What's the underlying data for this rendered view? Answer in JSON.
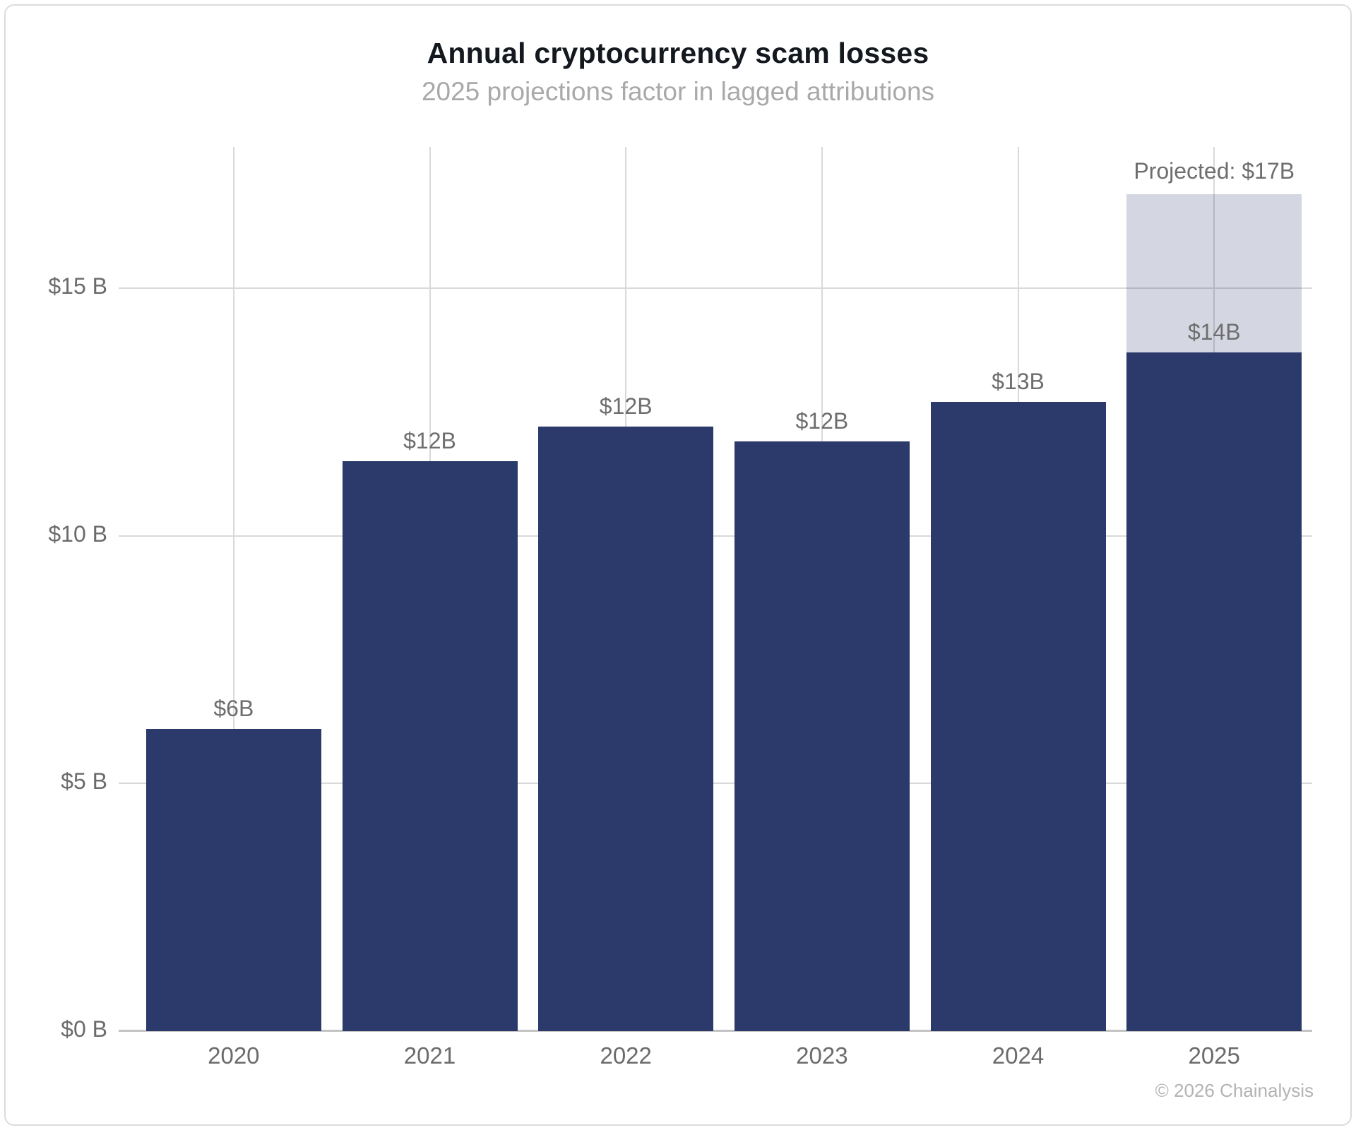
{
  "chart_data": {
    "type": "bar",
    "title": "Annual cryptocurrency scam losses",
    "subtitle": "2025 projections factor in lagged attributions",
    "categories": [
      "2020",
      "2021",
      "2022",
      "2023",
      "2024",
      "2025"
    ],
    "series": [
      {
        "name": "actual",
        "values": [
          6.1,
          11.5,
          12.2,
          11.9,
          12.7,
          13.7
        ]
      },
      {
        "name": "projected",
        "values": [
          0,
          0,
          0,
          0,
          0,
          3.2
        ]
      }
    ],
    "bar_value_labels": [
      "$6B",
      "$12B",
      "$12B",
      "$12B",
      "$13B",
      "$14B"
    ],
    "projected_annotation": "Projected: $17B",
    "projected_total": 16.9,
    "y_ticks": [
      {
        "value": 0,
        "label": "$0 B"
      },
      {
        "value": 5,
        "label": "$5 B"
      },
      {
        "value": 10,
        "label": "$10 B"
      },
      {
        "value": 15,
        "label": "$15 B"
      }
    ],
    "ylim": [
      0,
      17.85
    ],
    "xlabel": "",
    "ylabel": "",
    "grid": true,
    "legend": false,
    "colors": {
      "bar": "#2b3a6a",
      "projected_fill": "rgba(42,56,103,0.20)",
      "gridline": "#d9d9d9",
      "axis_line": "#c4c4c4",
      "value_label": "#6e6e6e",
      "axis_text": "#6b6b6b",
      "title": "#14181f",
      "subtitle": "#a9a9a9",
      "copyright": "#b3b3b3"
    }
  },
  "footer": {
    "copyright": "© 2026 Chainalysis"
  }
}
